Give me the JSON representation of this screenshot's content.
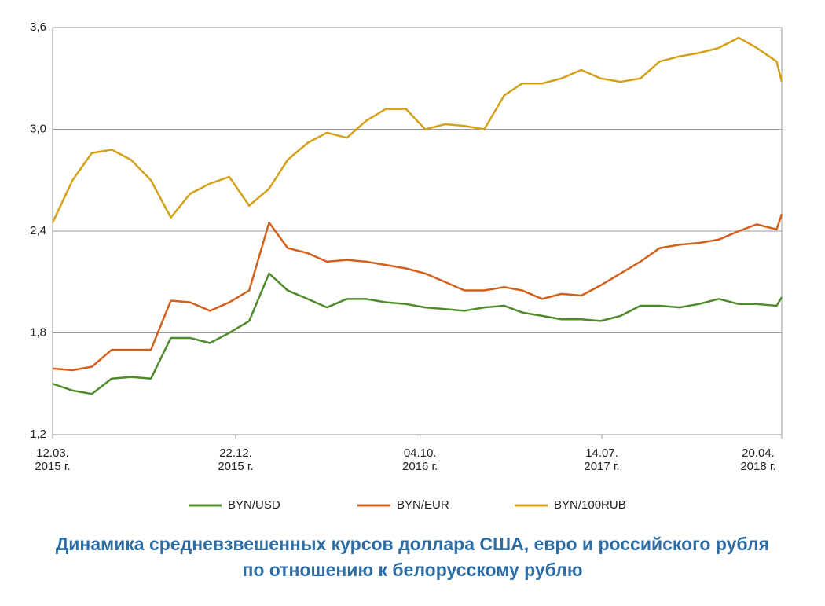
{
  "chart_data": {
    "type": "line",
    "title": "Динамика средневзвешенных курсов доллара США, евро и российского рубля\nпо отношению к белорусскому рублю",
    "x": [
      "2015-03-12",
      "2015-04-12",
      "2015-05-12",
      "2015-06-12",
      "2015-07-12",
      "2015-08-12",
      "2015-09-12",
      "2015-10-12",
      "2015-11-12",
      "2015-12-12",
      "2016-01-12",
      "2016-02-12",
      "2016-03-12",
      "2016-04-12",
      "2016-05-12",
      "2016-06-12",
      "2016-07-12",
      "2016-08-12",
      "2016-09-12",
      "2016-10-12",
      "2016-11-12",
      "2016-12-12",
      "2017-01-12",
      "2017-02-12",
      "2017-03-12",
      "2017-04-12",
      "2017-05-12",
      "2017-06-12",
      "2017-07-12",
      "2017-08-12",
      "2017-09-12",
      "2017-10-12",
      "2017-11-12",
      "2017-12-12",
      "2018-01-12",
      "2018-02-12",
      "2018-03-12",
      "2018-04-12",
      "2018-04-20"
    ],
    "series": [
      {
        "name": "BYN/USD",
        "color": "#4f8a2b",
        "values": [
          1.5,
          1.46,
          1.44,
          1.53,
          1.54,
          1.53,
          1.77,
          1.77,
          1.74,
          1.8,
          1.87,
          2.15,
          2.05,
          2.0,
          1.95,
          2.0,
          2.0,
          1.98,
          1.97,
          1.95,
          1.94,
          1.93,
          1.95,
          1.96,
          1.92,
          1.9,
          1.88,
          1.88,
          1.87,
          1.9,
          1.96,
          1.96,
          1.95,
          1.97,
          2.0,
          1.97,
          1.97,
          1.96,
          2.01
        ]
      },
      {
        "name": "BYN/EUR",
        "color": "#d2601a",
        "values": [
          1.59,
          1.58,
          1.6,
          1.7,
          1.7,
          1.7,
          1.99,
          1.98,
          1.93,
          1.98,
          2.05,
          2.45,
          2.3,
          2.27,
          2.22,
          2.23,
          2.22,
          2.2,
          2.18,
          2.15,
          2.1,
          2.05,
          2.05,
          2.07,
          2.05,
          2.0,
          2.03,
          2.02,
          2.08,
          2.15,
          2.22,
          2.3,
          2.32,
          2.33,
          2.35,
          2.4,
          2.44,
          2.41,
          2.5
        ]
      },
      {
        "name": "BYN/100RUB",
        "color": "#d4a017",
        "values": [
          2.45,
          2.7,
          2.86,
          2.88,
          2.82,
          2.7,
          2.48,
          2.62,
          2.68,
          2.72,
          2.55,
          2.65,
          2.82,
          2.92,
          2.98,
          2.95,
          3.05,
          3.12,
          3.12,
          3.0,
          3.03,
          3.02,
          3.0,
          3.2,
          3.27,
          3.27,
          3.3,
          3.35,
          3.3,
          3.28,
          3.3,
          3.4,
          3.43,
          3.45,
          3.48,
          3.54,
          3.48,
          3.4,
          3.28
        ]
      }
    ],
    "xlim": [
      "2015-03-12",
      "2018-04-20"
    ],
    "xticks": [
      {
        "value": "2015-03-12",
        "label": "12.03.\n2015 г."
      },
      {
        "value": "2015-12-22",
        "label": "22.12.\n2015 г."
      },
      {
        "value": "2016-10-04",
        "label": "04.10.\n2016 г."
      },
      {
        "value": "2017-07-14",
        "label": "14.07.\n2017 г."
      },
      {
        "value": "2018-04-20",
        "label": "20.04.\n2018 г."
      }
    ],
    "ylim": [
      1.2,
      3.6
    ],
    "yticks": [
      {
        "value": 1.2,
        "label": "1,2"
      },
      {
        "value": 1.8,
        "label": "1,8"
      },
      {
        "value": 2.4,
        "label": "2,4"
      },
      {
        "value": 3.0,
        "label": "3,0"
      },
      {
        "value": 3.6,
        "label": "3,6"
      }
    ],
    "grid": true
  }
}
